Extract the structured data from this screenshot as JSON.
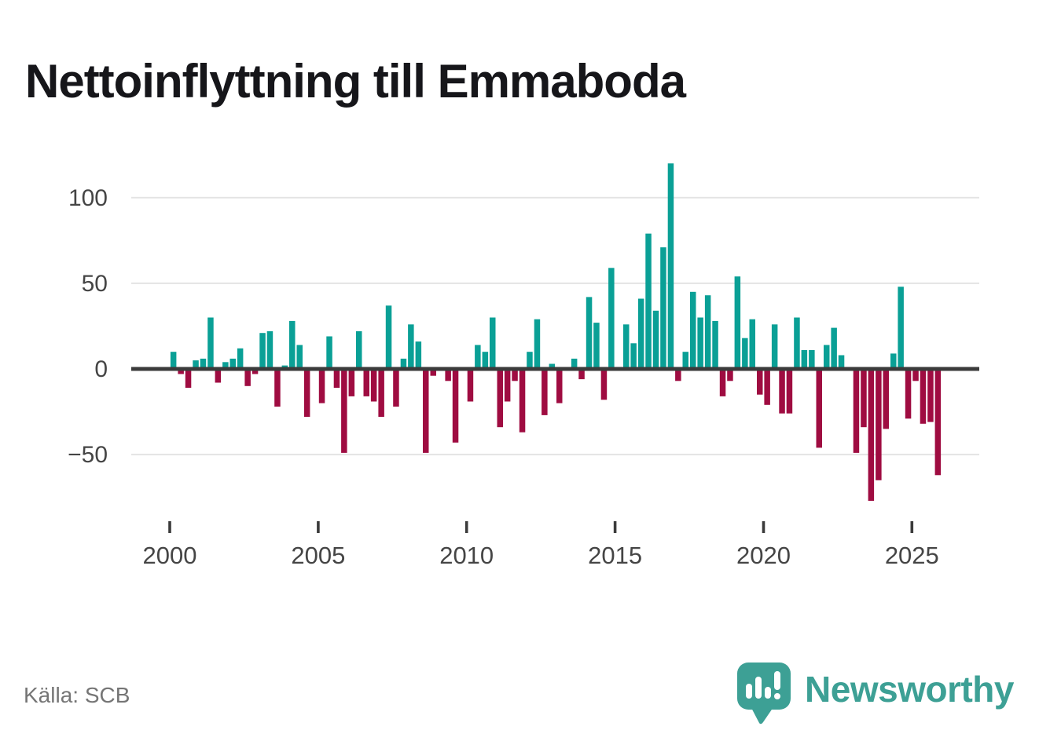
{
  "title": "Nettoinflyttning till Emmaboda",
  "source": "Källa: SCB",
  "branding": {
    "name": "Newsworthy",
    "icon": "newsworthy-speech-bubble-chart-icon"
  },
  "colors": {
    "positive_bar": "#0aa096",
    "negative_bar": "#9f0c41",
    "zero_axis_line": "#3b3b3b",
    "gridline": "#e4e4e4",
    "axis_text": "#454545",
    "tick_mark": "#3b3b3b",
    "title_text": "#16161a",
    "source_text": "#757575",
    "brand_teal": "#3da095",
    "background": "#ffffff"
  },
  "chart_data": {
    "type": "bar",
    "title": "Nettoinflyttning till Emmaboda",
    "xlabel": "",
    "ylabel": "",
    "frequency": "quarterly",
    "start_year": 2000,
    "end_year": 2025,
    "values": [
      10,
      -3,
      -11,
      5,
      6,
      30,
      -8,
      4,
      6,
      12,
      -10,
      -3,
      21,
      22,
      -22,
      2,
      28,
      14,
      -28,
      0,
      -20,
      19,
      -11,
      -49,
      -16,
      22,
      -16,
      -19,
      -28,
      37,
      -22,
      6,
      26,
      16,
      -49,
      -4,
      0,
      -7,
      -43,
      0,
      -19,
      14,
      10,
      30,
      -34,
      -19,
      -7,
      -37,
      10,
      29,
      -27,
      3,
      -20,
      0,
      6,
      -6,
      42,
      27,
      -18,
      59,
      0,
      26,
      15,
      41,
      79,
      34,
      71,
      120,
      -7,
      10,
      45,
      30,
      43,
      28,
      -16,
      -7,
      54,
      18,
      29,
      -15,
      -21,
      26,
      -26,
      -26,
      30,
      11,
      11,
      -46,
      14,
      24,
      8,
      0,
      -49,
      -34,
      -77,
      -65,
      -35,
      9,
      48,
      -29,
      -7,
      -32,
      -31,
      -62
    ],
    "y_ticks": [
      100,
      50,
      0,
      -50
    ],
    "y_tick_labels": [
      "100",
      "50",
      "0",
      "−50"
    ],
    "gridline_values": [
      100,
      50,
      -50
    ],
    "x_tick_years": [
      2000,
      2005,
      2010,
      2015,
      2020,
      2025
    ],
    "x_tick_labels": [
      "2000",
      "2005",
      "2010",
      "2015",
      "2020",
      "2025"
    ],
    "ylim": [
      -85,
      130
    ],
    "grid": "horizontal",
    "legend_position": "none"
  }
}
